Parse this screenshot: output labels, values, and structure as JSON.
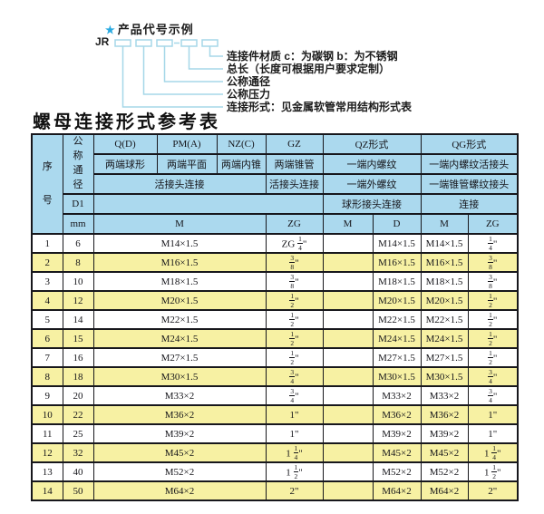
{
  "diagram": {
    "star_icon": "★",
    "heading": "产品代号示例",
    "prefix": "JR",
    "labels": [
      "连接件材质  c：为碳钢  b：为不锈钢",
      "总长（长度可根据用户要求定制）",
      "公称通径",
      "公称压力",
      "连接形式：见金属软管常用结构形式表"
    ]
  },
  "table_title": "螺母连接形式参考表",
  "table": {
    "header": {
      "seq": "序号",
      "dn": "公称通径",
      "d1": "D1",
      "mm": "mm",
      "col_q": "Q(D)",
      "col_pm": "PM(A)",
      "col_nz": "NZ(C)",
      "col_gz": "GZ",
      "col_qz": "QZ形式",
      "col_qg": "QG形式",
      "q_desc": "两端球形",
      "pm_desc": "两端平面",
      "nz_desc": "两端内锥",
      "gz_desc": "两端锥管",
      "qz_desc1": "一端内螺纹",
      "qg_desc1": "一端内螺纹活接头",
      "union_conn": "活接头连接",
      "gz_conn": "活接头连接",
      "qz_desc2": "一端外螺纹",
      "qg_desc2": "一端锥管螺纹接头",
      "qz_conn": "球形接头连接",
      "qg_conn": "连接",
      "m_span": "M",
      "zg_gz": "ZG",
      "qz_m": "M",
      "qz_d": "D",
      "qg_m": "M",
      "qg_zg": "ZG"
    },
    "rows": [
      {
        "seq": "1",
        "dn": "6",
        "m": "M14×1.5",
        "gz_zg": "ZG 1/4\"",
        "qz_m": "",
        "qz_d": "M14×1.5",
        "qg_m": "M14×1.5",
        "qg_zg": "1/4\""
      },
      {
        "seq": "2",
        "dn": "8",
        "m": "M16×1.5",
        "gz_zg": "3/8\"",
        "qz_m": "",
        "qz_d": "M16×1.5",
        "qg_m": "M16×1.5",
        "qg_zg": "3/8\""
      },
      {
        "seq": "3",
        "dn": "10",
        "m": "M18×1.5",
        "gz_zg": "3/8\"",
        "qz_m": "",
        "qz_d": "M18×1.5",
        "qg_m": "M18×1.5",
        "qg_zg": "3/8\""
      },
      {
        "seq": "4",
        "dn": "12",
        "m": "M20×1.5",
        "gz_zg": "1/2\"",
        "qz_m": "",
        "qz_d": "M20×1.5",
        "qg_m": "M20×1.5",
        "qg_zg": "1/2\""
      },
      {
        "seq": "5",
        "dn": "14",
        "m": "M22×1.5",
        "gz_zg": "1/2\"",
        "qz_m": "",
        "qz_d": "M22×1.5",
        "qg_m": "M22×1.5",
        "qg_zg": "1/2\""
      },
      {
        "seq": "6",
        "dn": "15",
        "m": "M24×1.5",
        "gz_zg": "1/2\"",
        "qz_m": "",
        "qz_d": "M24×1.5",
        "qg_m": "M24×1.5",
        "qg_zg": "1/2\""
      },
      {
        "seq": "7",
        "dn": "16",
        "m": "M27×1.5",
        "gz_zg": "1/2\"",
        "qz_m": "",
        "qz_d": "M27×1.5",
        "qg_m": "M27×1.5",
        "qg_zg": "1/2\""
      },
      {
        "seq": "8",
        "dn": "18",
        "m": "M30×1.5",
        "gz_zg": "3/4\"",
        "qz_m": "",
        "qz_d": "M30×1.5",
        "qg_m": "M30×1.5",
        "qg_zg": "3/4\""
      },
      {
        "seq": "9",
        "dn": "20",
        "m": "M33×2",
        "gz_zg": "3/4\"",
        "qz_m": "",
        "qz_d": "M33×2",
        "qg_m": "M33×2",
        "qg_zg": "3/4\""
      },
      {
        "seq": "10",
        "dn": "22",
        "m": "M36×2",
        "gz_zg": "1\"",
        "qz_m": "",
        "qz_d": "M36×2",
        "qg_m": "M36×2",
        "qg_zg": "1\""
      },
      {
        "seq": "11",
        "dn": "25",
        "m": "M39×2",
        "gz_zg": "1\"",
        "qz_m": "",
        "qz_d": "M39×2",
        "qg_m": "M39×2",
        "qg_zg": "1\""
      },
      {
        "seq": "12",
        "dn": "32",
        "m": "M45×2",
        "gz_zg": "1 1/4\"",
        "qz_m": "",
        "qz_d": "M45×2",
        "qg_m": "M45×2",
        "qg_zg": "1 1/4\""
      },
      {
        "seq": "13",
        "dn": "40",
        "m": "M52×2",
        "gz_zg": "1 1/2\"",
        "qz_m": "",
        "qz_d": "M52×2",
        "qg_m": "M52×2",
        "qg_zg": "1 1/2\""
      },
      {
        "seq": "14",
        "dn": "50",
        "m": "M64×2",
        "gz_zg": "2\"",
        "qz_m": "",
        "qz_d": "M64×2",
        "qg_m": "M64×2",
        "qg_zg": "2\""
      }
    ],
    "colors": {
      "header_bg": "#abd9ee",
      "alt_row_bg": "#f7f1a3",
      "border": "#17171c",
      "diagram_line": "#a5d7e8",
      "star": "#29aae1"
    }
  }
}
